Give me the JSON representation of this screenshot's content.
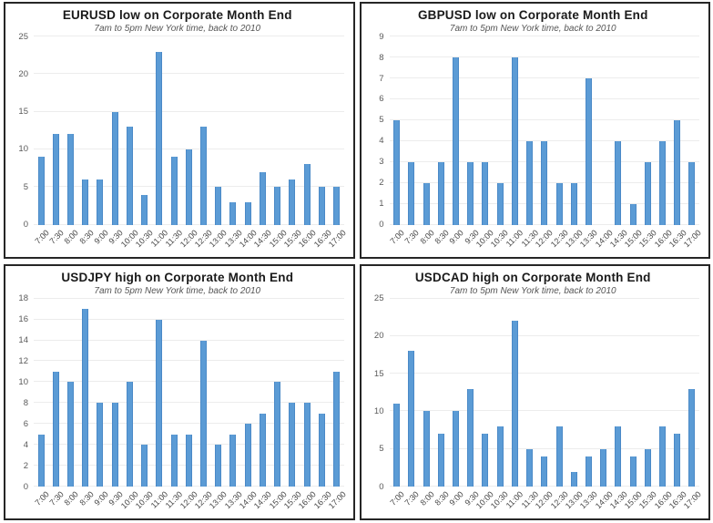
{
  "page": {
    "background": "#ffffff"
  },
  "styles": {
    "bar_fill": "#5B9BD5",
    "bar_edge": "#4A89C7",
    "grid_color": "#ececec",
    "panel_border": "#262626",
    "title_color": "#1a1a1a",
    "subtitle_color": "#555555",
    "tick_color": "#595959"
  },
  "chart_data": [
    {
      "type": "bar",
      "title": "EURUSD low on Corporate Month End",
      "subtitle": "7am to 5pm New York time, back to 2010",
      "categories": [
        "7:00",
        "7:30",
        "8:00",
        "8:30",
        "9:00",
        "9:30",
        "10:00",
        "10:30",
        "11:00",
        "11:30",
        "12:00",
        "12:30",
        "13:00",
        "13:30",
        "14:00",
        "14:30",
        "15:00",
        "15:30",
        "16:00",
        "16:30",
        "17:00"
      ],
      "values": [
        9,
        12,
        12,
        6,
        6,
        15,
        13,
        4,
        23,
        9,
        10,
        13,
        5,
        3,
        3,
        7,
        5,
        6,
        8,
        5,
        5
      ],
      "xlabel": "",
      "ylabel": "",
      "ylim": [
        0,
        25
      ],
      "ytick_step": 5,
      "grid": true,
      "legend": false
    },
    {
      "type": "bar",
      "title": "GBPUSD low on Corporate Month End",
      "subtitle": "7am to 5pm New York time, back to 2010",
      "categories": [
        "7:00",
        "7:30",
        "8:00",
        "8:30",
        "9:00",
        "9:30",
        "10:00",
        "10:30",
        "11:00",
        "11:30",
        "12:00",
        "12:30",
        "13:00",
        "13:30",
        "14:00",
        "14:30",
        "15:00",
        "15:30",
        "16:00",
        "16:30",
        "17:00"
      ],
      "values": [
        5,
        3,
        2,
        3,
        8,
        3,
        3,
        2,
        8,
        4,
        4,
        2,
        2,
        7,
        0,
        4,
        1,
        3,
        4,
        5,
        3
      ],
      "xlabel": "",
      "ylabel": "",
      "ylim": [
        0,
        9
      ],
      "ytick_step": 1,
      "grid": true,
      "legend": false
    },
    {
      "type": "bar",
      "title": "USDJPY high on Corporate Month End",
      "subtitle": "7am to 5pm New York time, back to 2010",
      "categories": [
        "7:00",
        "7:30",
        "8:00",
        "8:30",
        "9:00",
        "9:30",
        "10:00",
        "10:30",
        "11:00",
        "11:30",
        "12:00",
        "12:30",
        "13:00",
        "13:30",
        "14:00",
        "14:30",
        "15:00",
        "15:30",
        "16:00",
        "16:30",
        "17:00"
      ],
      "values": [
        5,
        11,
        10,
        17,
        8,
        8,
        10,
        4,
        16,
        5,
        5,
        14,
        4,
        5,
        6,
        7,
        10,
        8,
        8,
        7,
        11
      ],
      "xlabel": "",
      "ylabel": "",
      "ylim": [
        0,
        18
      ],
      "ytick_step": 2,
      "grid": true,
      "legend": false
    },
    {
      "type": "bar",
      "title": "USDCAD high on Corporate Month End",
      "subtitle": "7am to 5pm New York time, back to 2010",
      "categories": [
        "7:00",
        "7:30",
        "8:00",
        "8:30",
        "9:00",
        "9:30",
        "10:00",
        "10:30",
        "11:00",
        "11:30",
        "12:00",
        "12:30",
        "13:00",
        "13:30",
        "14:00",
        "14:30",
        "15:00",
        "15:30",
        "16:00",
        "16:30",
        "17:00"
      ],
      "values": [
        11,
        18,
        10,
        7,
        10,
        13,
        7,
        8,
        22,
        5,
        4,
        8,
        2,
        4,
        5,
        8,
        4,
        5,
        8,
        7,
        13
      ],
      "xlabel": "",
      "ylabel": "",
      "ylim": [
        0,
        25
      ],
      "ytick_step": 5,
      "grid": true,
      "legend": false
    }
  ]
}
